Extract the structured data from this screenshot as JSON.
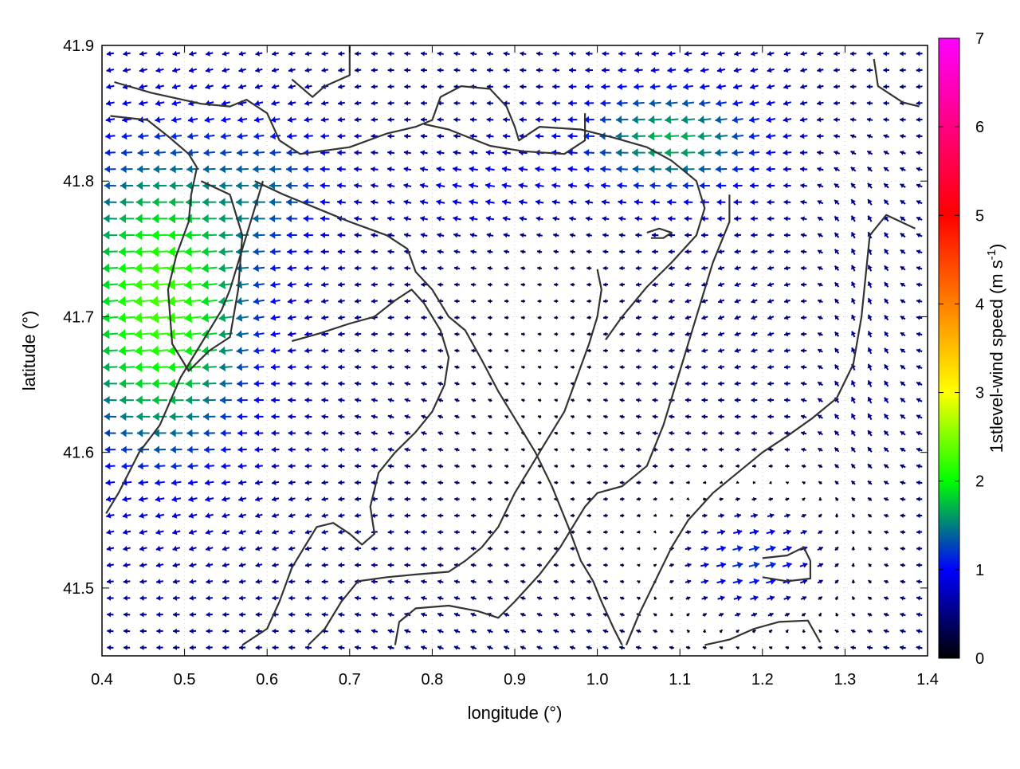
{
  "chart_data": {
    "type": "vector-field",
    "xlabel": "longitude (°)",
    "ylabel": "latitude (°)",
    "xlim": [
      0.4,
      1.4
    ],
    "ylim": [
      41.45,
      41.9
    ],
    "xticks": [
      "0.4",
      "0.5",
      "0.6",
      "0.7",
      "0.8",
      "0.9",
      "1.0",
      "1.1",
      "1.2",
      "1.3",
      "1.4"
    ],
    "xtick_values": [
      0.4,
      0.5,
      0.6,
      0.7,
      0.8,
      0.9,
      1.0,
      1.1,
      1.2,
      1.3,
      1.4
    ],
    "yticks": [
      "41.5",
      "41.6",
      "41.7",
      "41.8",
      "41.9"
    ],
    "ytick_values": [
      41.5,
      41.6,
      41.7,
      41.8,
      41.9
    ],
    "grid": true,
    "colorbar": {
      "label": "1stlevel-wind speed (m s-1)",
      "label_main": "1stlevel-wind speed (m s",
      "label_sup": "-1",
      "label_close": ")",
      "range": [
        0,
        7
      ],
      "ticks": [
        "0",
        "1",
        "2",
        "3",
        "4",
        "5",
        "6",
        "7"
      ],
      "tick_values": [
        0,
        1,
        2,
        3,
        4,
        5,
        6,
        7
      ],
      "palette": [
        "#000000",
        "#0000ff",
        "#00ff00",
        "#ffff00",
        "#ff8000",
        "#ff0000",
        "#ff0080",
        "#ff00ff"
      ]
    },
    "vector_grid": {
      "nx": 50,
      "ny": 37
    },
    "coastline_color": "#333333",
    "contours": [
      {
        "name": "lake-west",
        "points": [
          [
            0.41,
            41.848
          ],
          [
            0.455,
            41.845
          ],
          [
            0.48,
            41.833
          ],
          [
            0.505,
            41.82
          ],
          [
            0.515,
            41.81
          ],
          [
            0.508,
            41.79
          ],
          [
            0.505,
            41.77
          ],
          [
            0.49,
            41.745
          ],
          [
            0.48,
            41.72
          ],
          [
            0.485,
            41.68
          ],
          [
            0.505,
            41.66
          ],
          [
            0.53,
            41.675
          ],
          [
            0.555,
            41.685
          ],
          [
            0.565,
            41.72
          ],
          [
            0.57,
            41.76
          ],
          [
            0.555,
            41.79
          ],
          [
            0.52,
            41.8
          ]
        ]
      },
      {
        "name": "ridge-north",
        "points": [
          [
            0.415,
            41.873
          ],
          [
            0.46,
            41.865
          ],
          [
            0.52,
            41.857
          ],
          [
            0.555,
            41.855
          ],
          [
            0.575,
            41.86
          ],
          [
            0.6,
            41.85
          ],
          [
            0.615,
            41.83
          ],
          [
            0.64,
            41.82
          ],
          [
            0.7,
            41.825
          ],
          [
            0.745,
            41.835
          ],
          [
            0.78,
            41.84
          ],
          [
            0.8,
            41.845
          ],
          [
            0.81,
            41.862
          ],
          [
            0.835,
            41.87
          ],
          [
            0.87,
            41.868
          ],
          [
            0.89,
            41.855
          ],
          [
            0.9,
            41.84
          ],
          [
            0.905,
            41.83
          ],
          [
            0.93,
            41.84
          ],
          [
            0.98,
            41.838
          ],
          [
            1.02,
            41.832
          ],
          [
            1.06,
            41.825
          ],
          [
            1.09,
            41.815
          ],
          [
            1.12,
            41.8
          ],
          [
            1.13,
            41.78
          ],
          [
            1.12,
            41.76
          ],
          [
            1.09,
            41.74
          ],
          [
            1.06,
            41.722
          ],
          [
            1.03,
            41.7
          ],
          [
            1.01,
            41.683
          ]
        ]
      },
      {
        "name": "lake-north-center",
        "points": [
          [
            0.63,
            41.875
          ],
          [
            0.655,
            41.862
          ],
          [
            0.67,
            41.87
          ],
          [
            0.7,
            41.878
          ],
          [
            0.7,
            41.9
          ]
        ]
      },
      {
        "name": "ridge-upper",
        "points": [
          [
            0.79,
            41.842
          ],
          [
            0.82,
            41.838
          ],
          [
            0.87,
            41.826
          ],
          [
            0.91,
            41.822
          ],
          [
            0.96,
            41.82
          ],
          [
            0.985,
            41.83
          ],
          [
            0.985,
            41.85
          ]
        ]
      },
      {
        "name": "ridge-central",
        "points": [
          [
            0.585,
            41.8
          ],
          [
            0.62,
            41.79
          ],
          [
            0.66,
            41.78
          ],
          [
            0.7,
            41.77
          ],
          [
            0.745,
            41.76
          ],
          [
            0.77,
            41.75
          ],
          [
            0.78,
            41.733
          ],
          [
            0.8,
            41.72
          ],
          [
            0.82,
            41.7
          ],
          [
            0.84,
            41.69
          ],
          [
            0.86,
            41.668
          ],
          [
            0.88,
            41.645
          ],
          [
            0.9,
            41.625
          ],
          [
            0.925,
            41.6
          ],
          [
            0.945,
            41.575
          ],
          [
            0.965,
            41.545
          ],
          [
            0.98,
            41.52
          ],
          [
            0.995,
            41.505
          ],
          [
            1.005,
            41.49
          ],
          [
            1.02,
            41.47
          ],
          [
            1.03,
            41.458
          ]
        ]
      },
      {
        "name": "ridge-west-inner",
        "points": [
          [
            0.595,
            41.8
          ],
          [
            0.58,
            41.77
          ],
          [
            0.565,
            41.74
          ],
          [
            0.555,
            41.72
          ],
          [
            0.545,
            41.705
          ],
          [
            0.52,
            41.68
          ],
          [
            0.495,
            41.655
          ],
          [
            0.47,
            41.62
          ],
          [
            0.445,
            41.6
          ],
          [
            0.42,
            41.57
          ],
          [
            0.405,
            41.555
          ]
        ]
      },
      {
        "name": "lake-center",
        "points": [
          [
            0.63,
            41.682
          ],
          [
            0.665,
            41.688
          ],
          [
            0.7,
            41.695
          ],
          [
            0.73,
            41.7
          ],
          [
            0.755,
            41.712
          ],
          [
            0.775,
            41.72
          ],
          [
            0.79,
            41.71
          ],
          [
            0.81,
            41.69
          ],
          [
            0.82,
            41.67
          ],
          [
            0.815,
            41.65
          ],
          [
            0.8,
            41.63
          ],
          [
            0.78,
            41.615
          ],
          [
            0.755,
            41.6
          ],
          [
            0.735,
            41.585
          ],
          [
            0.725,
            41.56
          ],
          [
            0.73,
            41.54
          ],
          [
            0.715,
            41.532
          ],
          [
            0.7,
            41.54
          ],
          [
            0.68,
            41.548
          ],
          [
            0.66,
            41.545
          ],
          [
            0.645,
            41.53
          ],
          [
            0.63,
            41.515
          ],
          [
            0.615,
            41.49
          ],
          [
            0.6,
            41.47
          ],
          [
            0.57,
            41.458
          ]
        ]
      },
      {
        "name": "ridge-south",
        "points": [
          [
            0.65,
            41.458
          ],
          [
            0.67,
            41.47
          ],
          [
            0.69,
            41.49
          ],
          [
            0.71,
            41.505
          ],
          [
            0.745,
            41.508
          ],
          [
            0.78,
            41.51
          ],
          [
            0.82,
            41.512
          ],
          [
            0.84,
            41.52
          ],
          [
            0.86,
            41.53
          ],
          [
            0.88,
            41.545
          ],
          [
            0.9,
            41.57
          ],
          [
            0.92,
            41.59
          ],
          [
            0.94,
            41.61
          ],
          [
            0.96,
            41.63
          ],
          [
            0.975,
            41.655
          ],
          [
            0.99,
            41.68
          ],
          [
            1.0,
            41.7
          ],
          [
            1.005,
            41.72
          ],
          [
            1.0,
            41.735
          ]
        ]
      },
      {
        "name": "lake-south-inner",
        "points": [
          [
            0.755,
            41.458
          ],
          [
            0.76,
            41.475
          ],
          [
            0.78,
            41.485
          ],
          [
            0.82,
            41.487
          ],
          [
            0.855,
            41.483
          ],
          [
            0.88,
            41.478
          ],
          [
            0.9,
            41.49
          ],
          [
            0.93,
            41.51
          ],
          [
            0.955,
            41.53
          ],
          [
            0.97,
            41.545
          ],
          [
            0.985,
            41.56
          ],
          [
            1.0,
            41.57
          ],
          [
            1.03,
            41.575
          ],
          [
            1.06,
            41.59
          ],
          [
            1.08,
            41.62
          ],
          [
            1.1,
            41.66
          ],
          [
            1.12,
            41.7
          ],
          [
            1.14,
            41.74
          ],
          [
            1.16,
            41.77
          ],
          [
            1.16,
            41.79
          ]
        ]
      },
      {
        "name": "ridge-east",
        "points": [
          [
            1.035,
            41.458
          ],
          [
            1.05,
            41.48
          ],
          [
            1.07,
            41.505
          ],
          [
            1.09,
            41.53
          ],
          [
            1.11,
            41.55
          ],
          [
            1.14,
            41.57
          ],
          [
            1.17,
            41.585
          ],
          [
            1.2,
            41.6
          ],
          [
            1.23,
            41.612
          ],
          [
            1.26,
            41.625
          ],
          [
            1.29,
            41.64
          ],
          [
            1.31,
            41.665
          ],
          [
            1.32,
            41.7
          ],
          [
            1.325,
            41.73
          ],
          [
            1.33,
            41.76
          ],
          [
            1.35,
            41.775
          ],
          [
            1.385,
            41.765
          ]
        ]
      },
      {
        "name": "lake-southeast",
        "points": [
          [
            1.2,
            41.522
          ],
          [
            1.23,
            41.524
          ],
          [
            1.25,
            41.53
          ],
          [
            1.258,
            41.52
          ],
          [
            1.258,
            41.507
          ],
          [
            1.23,
            41.505
          ],
          [
            1.2,
            41.508
          ]
        ]
      },
      {
        "name": "ridge-southeast",
        "points": [
          [
            1.13,
            41.458
          ],
          [
            1.16,
            41.462
          ],
          [
            1.19,
            41.47
          ],
          [
            1.22,
            41.475
          ],
          [
            1.255,
            41.476
          ],
          [
            1.27,
            41.46
          ]
        ]
      },
      {
        "name": "ridge-northeast",
        "points": [
          [
            1.335,
            41.89
          ],
          [
            1.34,
            41.87
          ],
          [
            1.37,
            41.858
          ],
          [
            1.39,
            41.855
          ]
        ]
      },
      {
        "name": "lake-northeast-small",
        "points": [
          [
            1.06,
            41.762
          ],
          [
            1.075,
            41.765
          ],
          [
            1.09,
            41.762
          ],
          [
            1.08,
            41.758
          ],
          [
            1.065,
            41.758
          ]
        ]
      }
    ]
  }
}
